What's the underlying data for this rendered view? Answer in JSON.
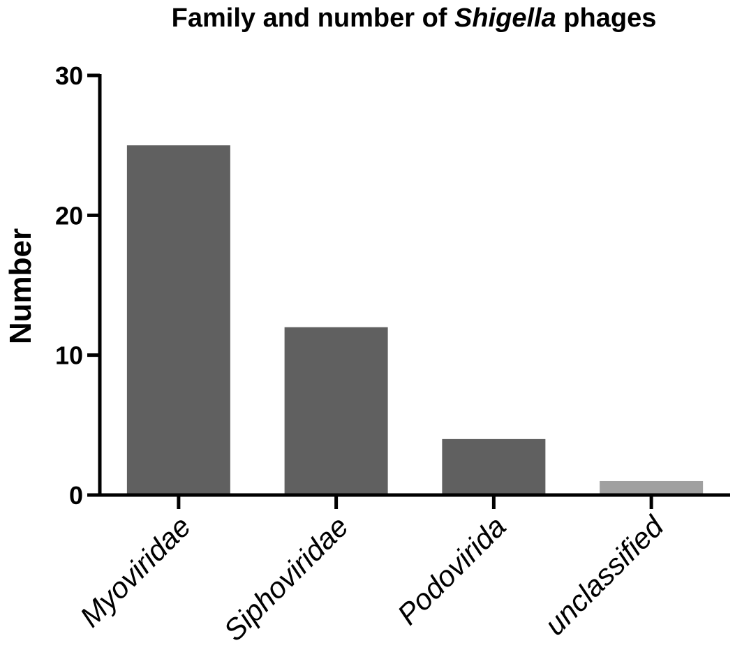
{
  "chart_data": {
    "type": "bar",
    "title_parts": [
      "Family and number of ",
      "Shigella",
      " phages"
    ],
    "ylabel": "Number",
    "xlabel": "",
    "categories": [
      "Myoviridae",
      "Siphoviridae",
      "Podovirida",
      "unclassified"
    ],
    "values": [
      25,
      12,
      4,
      1
    ],
    "ylim": [
      0,
      30
    ],
    "yticks": [
      0,
      10,
      20,
      30
    ],
    "bar_colors": [
      "#606060",
      "#606060",
      "#606060",
      "#a0a0a0"
    ],
    "grid": false,
    "legend": "none"
  }
}
